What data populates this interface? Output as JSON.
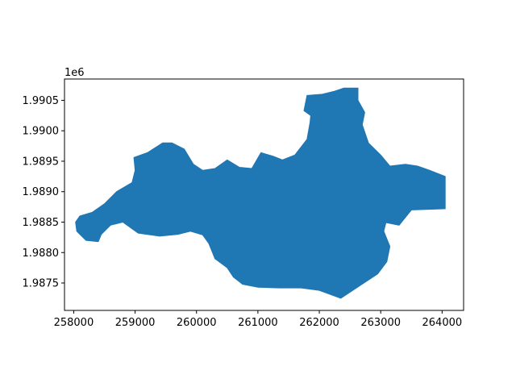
{
  "chart_data": {
    "type": "area",
    "title": "",
    "xlabel": "",
    "ylabel": "",
    "y_offset_label": "1e6",
    "xlim": [
      257850,
      264350
    ],
    "ylim": [
      1987050,
      1990850
    ],
    "grid": false,
    "legend": "none",
    "fill_color": "#1f77b4",
    "xticks": [
      {
        "value": 258000,
        "label": "258000"
      },
      {
        "value": 259000,
        "label": "259000"
      },
      {
        "value": 260000,
        "label": "260000"
      },
      {
        "value": 261000,
        "label": "261000"
      },
      {
        "value": 262000,
        "label": "262000"
      },
      {
        "value": 263000,
        "label": "263000"
      },
      {
        "value": 264000,
        "label": "264000"
      }
    ],
    "yticks": [
      {
        "value": 1987500,
        "label": "1.9875"
      },
      {
        "value": 1988000,
        "label": "1.9880"
      },
      {
        "value": 1988500,
        "label": "1.9885"
      },
      {
        "value": 1989000,
        "label": "1.9890"
      },
      {
        "value": 1989500,
        "label": "1.9895"
      },
      {
        "value": 1990000,
        "label": "1.9900"
      },
      {
        "value": 1990500,
        "label": "1.9905"
      }
    ],
    "polygon": [
      [
        258030,
        1988500
      ],
      [
        258100,
        1988600
      ],
      [
        258300,
        1988660
      ],
      [
        258500,
        1988800
      ],
      [
        258700,
        1989000
      ],
      [
        258950,
        1989150
      ],
      [
        259000,
        1989350
      ],
      [
        258980,
        1989560
      ],
      [
        259200,
        1989640
      ],
      [
        259450,
        1989800
      ],
      [
        259600,
        1989800
      ],
      [
        259800,
        1989700
      ],
      [
        259950,
        1989450
      ],
      [
        260100,
        1989350
      ],
      [
        260300,
        1989380
      ],
      [
        260500,
        1989520
      ],
      [
        260700,
        1989400
      ],
      [
        260900,
        1989380
      ],
      [
        261050,
        1989640
      ],
      [
        261250,
        1989580
      ],
      [
        261400,
        1989520
      ],
      [
        261600,
        1989600
      ],
      [
        261800,
        1989860
      ],
      [
        261850,
        1990140
      ],
      [
        261860,
        1990250
      ],
      [
        261750,
        1990330
      ],
      [
        261800,
        1990580
      ],
      [
        262050,
        1990600
      ],
      [
        262250,
        1990650
      ],
      [
        262400,
        1990700
      ],
      [
        262630,
        1990700
      ],
      [
        262630,
        1990500
      ],
      [
        262740,
        1990300
      ],
      [
        262700,
        1990100
      ],
      [
        262800,
        1989800
      ],
      [
        263000,
        1989600
      ],
      [
        263150,
        1989420
      ],
      [
        263400,
        1989450
      ],
      [
        263600,
        1989420
      ],
      [
        263800,
        1989350
      ],
      [
        264050,
        1989250
      ],
      [
        264050,
        1988720
      ],
      [
        263500,
        1988700
      ],
      [
        263300,
        1988450
      ],
      [
        263050,
        1988500
      ],
      [
        262950,
        1988650
      ],
      [
        263050,
        1988750
      ],
      [
        263200,
        1988700
      ],
      [
        263100,
        1988550
      ],
      [
        263050,
        1988350
      ],
      [
        263150,
        1988100
      ],
      [
        263100,
        1987850
      ],
      [
        262950,
        1987650
      ],
      [
        262650,
        1987450
      ],
      [
        262350,
        1987250
      ],
      [
        262000,
        1987380
      ],
      [
        261700,
        1987420
      ],
      [
        261350,
        1987420
      ],
      [
        261000,
        1987430
      ],
      [
        260750,
        1987480
      ],
      [
        260600,
        1987600
      ],
      [
        260500,
        1987750
      ],
      [
        260300,
        1987900
      ],
      [
        260200,
        1988150
      ],
      [
        260100,
        1988290
      ],
      [
        259900,
        1988350
      ],
      [
        259700,
        1988300
      ],
      [
        259400,
        1988270
      ],
      [
        259050,
        1988320
      ],
      [
        258800,
        1988500
      ],
      [
        258600,
        1988450
      ],
      [
        258450,
        1988300
      ],
      [
        258400,
        1988180
      ],
      [
        258200,
        1988200
      ],
      [
        258050,
        1988350
      ],
      [
        258030,
        1988500
      ]
    ]
  }
}
